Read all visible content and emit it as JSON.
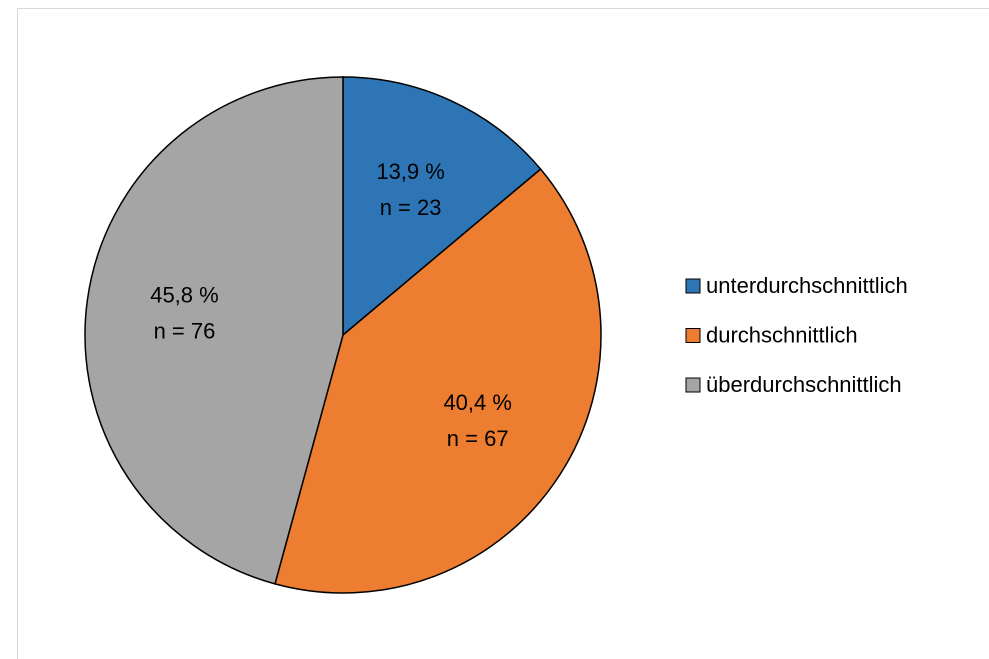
{
  "chart_data": {
    "type": "pie",
    "categories": [
      "unterdurchschnittlich",
      "durchschnittlich",
      "überdurchschnittlich"
    ],
    "values": [
      13.9,
      40.4,
      45.8
    ],
    "value_labels": [
      "13,9 %",
      "40,4 %",
      "45,8 %"
    ],
    "counts": [
      23,
      67,
      76
    ],
    "count_labels": [
      "n = 23",
      "n = 67",
      "n = 76"
    ],
    "colors": [
      "#2e75b6",
      "#ed7d31",
      "#a5a5a5"
    ],
    "legend": "right"
  }
}
